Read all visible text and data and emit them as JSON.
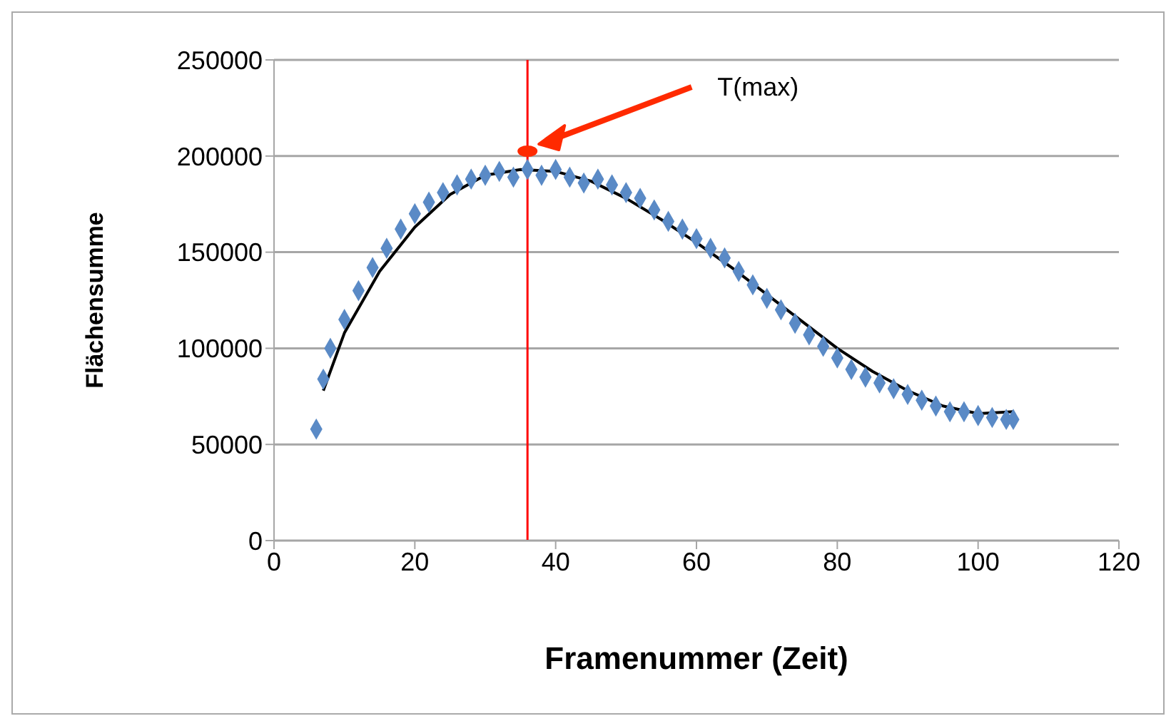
{
  "chart_data": {
    "type": "scatter",
    "xlabel": "Framenummer (Zeit)",
    "ylabel": "Flächensumme",
    "xlim": [
      0,
      120
    ],
    "xticks": [
      0,
      20,
      40,
      60,
      80,
      100,
      120
    ],
    "ylim": [
      0,
      250000
    ],
    "yticks": [
      0,
      50000,
      100000,
      150000,
      200000,
      250000
    ],
    "grid": "y",
    "legend": false,
    "marker": "diamond",
    "series": [
      {
        "color": "#5a8ac6",
        "x": [
          6,
          7,
          8,
          10,
          12,
          14,
          16,
          18,
          20,
          22,
          24,
          26,
          28,
          30,
          32,
          34,
          36,
          38,
          40,
          42,
          44,
          46,
          48,
          50,
          52,
          54,
          56,
          58,
          60,
          62,
          64,
          66,
          68,
          70,
          72,
          74,
          76,
          78,
          80,
          82,
          84,
          86,
          88,
          90,
          92,
          94,
          96,
          98,
          100,
          102,
          104,
          105
        ],
        "values": [
          58000,
          84000,
          100000,
          115000,
          130000,
          142000,
          152000,
          162000,
          170000,
          176000,
          181000,
          185000,
          188000,
          190000,
          192000,
          189000,
          193000,
          190000,
          193000,
          189000,
          186000,
          188000,
          185000,
          181000,
          178000,
          172000,
          166000,
          162000,
          157000,
          152000,
          147000,
          140000,
          133000,
          126000,
          120000,
          113000,
          107000,
          101000,
          95000,
          89000,
          85000,
          82000,
          79000,
          76000,
          73000,
          70000,
          67000,
          67000,
          65000,
          64000,
          63000,
          63000
        ]
      },
      {
        "type": "line",
        "color": "#000000",
        "marker": "none",
        "line_style": "solid",
        "x": [
          7,
          10,
          15,
          20,
          25,
          30,
          35,
          40,
          45,
          50,
          55,
          60,
          65,
          70,
          75,
          80,
          85,
          90,
          95,
          100,
          105
        ],
        "values": [
          78000,
          108000,
          140000,
          163000,
          180000,
          190000,
          193000,
          192000,
          187000,
          178000,
          167000,
          155000,
          142000,
          128000,
          114000,
          100000,
          88000,
          78000,
          70000,
          66000,
          67000
        ]
      }
    ],
    "ref_lines": [
      {
        "axis": "x",
        "value": 36,
        "color": "#ff0000"
      }
    ],
    "annotations": [
      "T(max)"
    ]
  }
}
